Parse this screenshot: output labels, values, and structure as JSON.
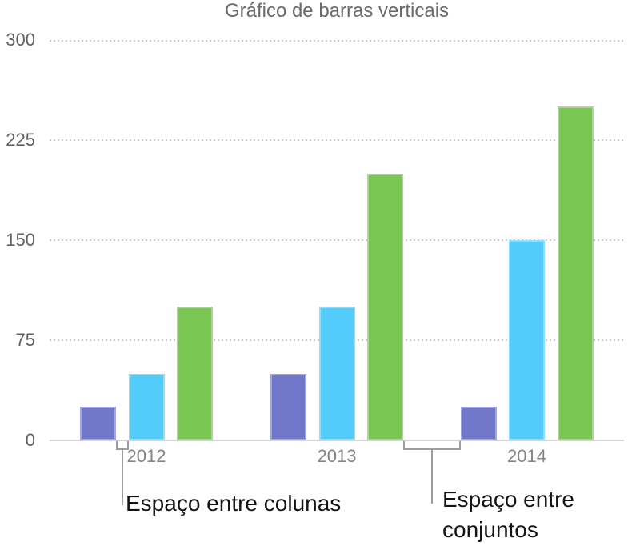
{
  "chart_data": {
    "type": "bar",
    "title": "Gráfico de barras verticais",
    "categories": [
      "2012",
      "2013",
      "2014"
    ],
    "series": [
      {
        "name": "purple",
        "color": "#7278C9",
        "values": [
          25,
          50,
          25
        ]
      },
      {
        "name": "blue",
        "color": "#52CDFB",
        "values": [
          50,
          100,
          150
        ]
      },
      {
        "name": "green",
        "color": "#79C653",
        "values": [
          100,
          200,
          250
        ]
      }
    ],
    "xlabel": "",
    "ylabel": "",
    "ylim": [
      0,
      300
    ],
    "yticks": [
      300,
      225,
      150,
      75,
      0
    ],
    "grid": "horizontal-dotted",
    "legend": "none",
    "title_color": "#6b6b6b",
    "axis_label_color": "#616161",
    "category_label_color": "#848484",
    "callout_color": "#9d9d9d"
  },
  "annotations": {
    "column_gap": {
      "label": "Espaço entre colunas"
    },
    "set_gap": {
      "lines": [
        "Espaço entre",
        "conjuntos"
      ]
    }
  }
}
